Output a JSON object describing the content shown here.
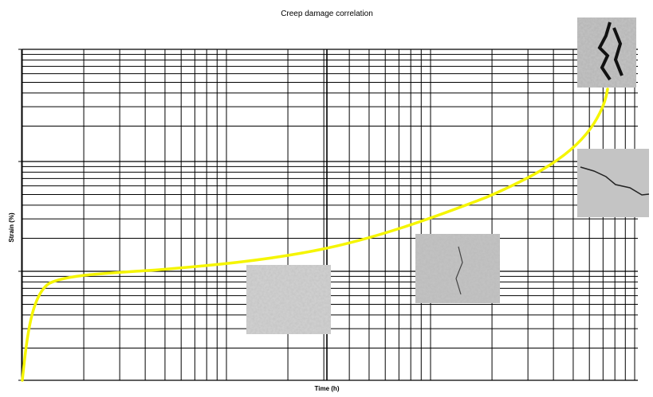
{
  "header": {
    "title": "Creep damage correlation"
  },
  "axes": {
    "x_label": "Time (h)",
    "y_label": "Strain (%)"
  }
}
